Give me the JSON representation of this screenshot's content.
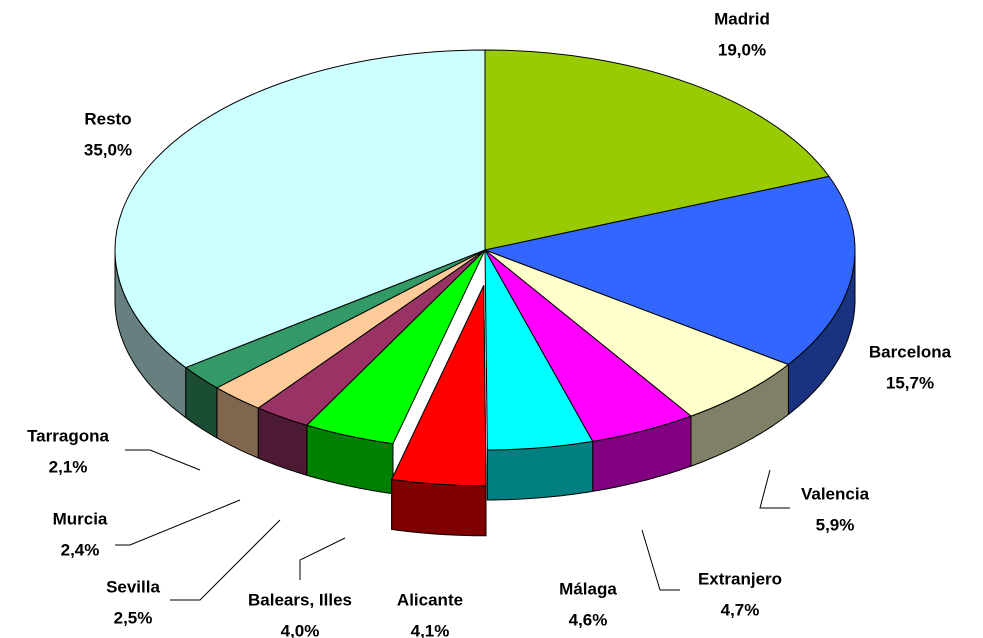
{
  "chart_data": {
    "type": "pie3d",
    "categories": [
      "Madrid",
      "Barcelona",
      "Valencia",
      "Extranjero",
      "Málaga",
      "Alicante",
      "Balears, Illes",
      "Sevilla",
      "Murcia",
      "Tarragona",
      "Resto"
    ],
    "values": [
      19.0,
      15.7,
      5.9,
      4.7,
      4.6,
      4.1,
      4.0,
      2.5,
      2.4,
      2.1,
      35.0
    ],
    "value_labels": [
      "19,0%",
      "15,7%",
      "5,9%",
      "4,7%",
      "4,6%",
      "4,1%",
      "4,0%",
      "2,5%",
      "2,4%",
      "2,1%",
      "35,0%"
    ],
    "colors": [
      "#99cc00",
      "#3366ff",
      "#ffffcc",
      "#ff00ff",
      "#00ffff",
      "#ff0000",
      "#00ff00",
      "#993366",
      "#ffcc99",
      "#339966",
      "#ccffff"
    ],
    "explode": [
      5
    ]
  }
}
